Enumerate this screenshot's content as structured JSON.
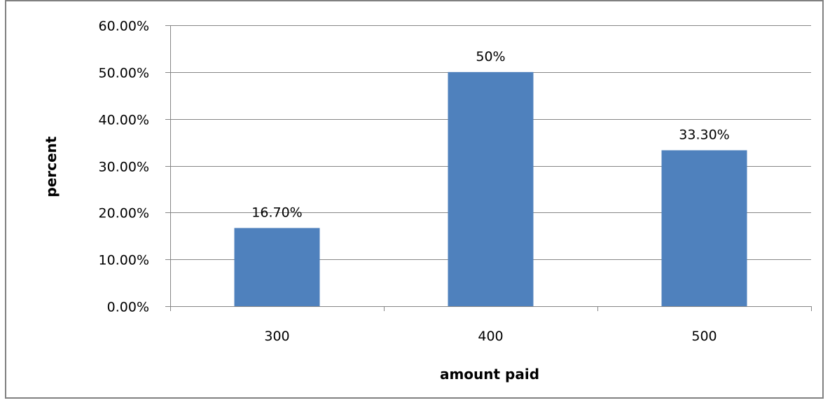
{
  "chart_data": {
    "type": "bar",
    "title": "",
    "xlabel": "amount paid",
    "ylabel": "percent",
    "categories": [
      "300",
      "400",
      "500"
    ],
    "values": [
      16.7,
      50,
      33.3
    ],
    "data_labels": [
      "16.70%",
      "50%",
      "33.30%"
    ],
    "ylim": [
      0,
      60
    ],
    "y_ticks": [
      0,
      10,
      20,
      30,
      40,
      50,
      60
    ],
    "y_tick_labels": [
      "0.00%",
      "10.00%",
      "20.00%",
      "30.00%",
      "40.00%",
      "50.00%",
      "60.00%"
    ],
    "grid": true,
    "legend": "none",
    "colors": {
      "bar": "#4f81bd",
      "grid": "#868686",
      "axis": "#868686"
    }
  }
}
